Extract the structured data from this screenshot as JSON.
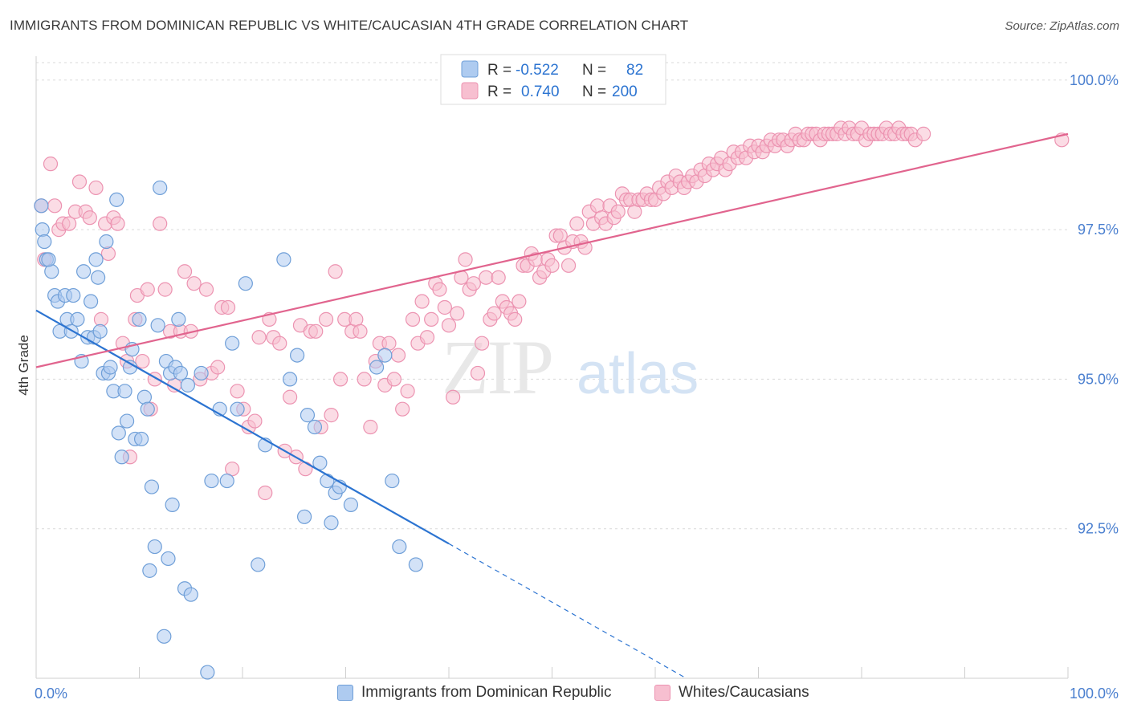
{
  "title": "IMMIGRANTS FROM DOMINICAN REPUBLIC VS WHITE/CAUCASIAN 4TH GRADE CORRELATION CHART",
  "source": "Source: ZipAtlas.com",
  "watermark": {
    "zip": "ZIP",
    "atlas": "atlas"
  },
  "colors": {
    "blue_fill": "#aecbf0",
    "blue_stroke": "#6f9fd8",
    "blue_line": "#2c74d1",
    "pink_fill": "#f7bfd0",
    "pink_stroke": "#ec93b1",
    "pink_line": "#e1648e",
    "axis_text": "#4a7fcf",
    "grid": "#d9d9d9"
  },
  "legend_box": {
    "rows": [
      {
        "r_label": "R =",
        "r_value": "-0.522",
        "n_label": "N =",
        "n_value": "82",
        "series": "blue"
      },
      {
        "r_label": "R =",
        "r_value": "0.740",
        "n_label": "N =",
        "n_value": "200",
        "series": "pink"
      }
    ]
  },
  "legend_bottom": [
    {
      "label": "Immigrants from Dominican Republic",
      "series": "blue"
    },
    {
      "label": "Whites/Caucasians",
      "series": "pink"
    }
  ],
  "chart_data": {
    "type": "scatter",
    "xlabel": "",
    "ylabel": "4th Grade",
    "xlim": [
      0,
      100
    ],
    "ylim": [
      90.0,
      100.4
    ],
    "x_tick_labels": [
      "0.0%",
      "100.0%"
    ],
    "y_ticks": [
      92.5,
      95.0,
      97.5,
      100.0
    ],
    "y_tick_labels": [
      "92.5%",
      "95.0%",
      "97.5%",
      "100.0%"
    ],
    "grid": true,
    "series": [
      {
        "name": "Immigrants from Dominican Republic",
        "color": "blue",
        "trend": {
          "x0": 0,
          "y0": 96.15,
          "x1": 40,
          "y1": 92.25,
          "dash_to_x": 63,
          "dash_to_y": 90.0
        },
        "points": [
          [
            0.5,
            97.9
          ],
          [
            0.6,
            97.5
          ],
          [
            0.8,
            97.3
          ],
          [
            1.0,
            97.0
          ],
          [
            1.5,
            96.8
          ],
          [
            1.8,
            96.4
          ],
          [
            2.1,
            96.3
          ],
          [
            2.3,
            95.8
          ],
          [
            2.8,
            96.4
          ],
          [
            3.0,
            96.0
          ],
          [
            3.4,
            95.8
          ],
          [
            3.6,
            96.4
          ],
          [
            4.0,
            96.0
          ],
          [
            4.4,
            95.3
          ],
          [
            4.6,
            96.8
          ],
          [
            5.0,
            95.7
          ],
          [
            5.3,
            96.3
          ],
          [
            5.6,
            95.7
          ],
          [
            5.8,
            97.0
          ],
          [
            6.0,
            96.7
          ],
          [
            6.2,
            95.8
          ],
          [
            6.5,
            95.1
          ],
          [
            6.8,
            97.3
          ],
          [
            7.0,
            95.1
          ],
          [
            7.2,
            95.2
          ],
          [
            7.5,
            94.8
          ],
          [
            7.8,
            98.0
          ],
          [
            8.0,
            94.1
          ],
          [
            8.3,
            93.7
          ],
          [
            8.6,
            94.8
          ],
          [
            8.8,
            94.3
          ],
          [
            9.1,
            95.2
          ],
          [
            9.3,
            95.5
          ],
          [
            9.6,
            94.0
          ],
          [
            10.0,
            96.0
          ],
          [
            10.2,
            94.0
          ],
          [
            10.5,
            94.7
          ],
          [
            10.8,
            94.5
          ],
          [
            11.0,
            91.8
          ],
          [
            11.2,
            93.2
          ],
          [
            11.5,
            92.2
          ],
          [
            11.8,
            95.9
          ],
          [
            12.0,
            98.2
          ],
          [
            12.4,
            90.7
          ],
          [
            12.6,
            95.3
          ],
          [
            12.8,
            92.0
          ],
          [
            13.0,
            95.1
          ],
          [
            13.2,
            92.9
          ],
          [
            13.5,
            95.2
          ],
          [
            13.8,
            96.0
          ],
          [
            14.0,
            95.1
          ],
          [
            14.4,
            91.5
          ],
          [
            14.7,
            94.9
          ],
          [
            15.0,
            91.4
          ],
          [
            16.0,
            95.1
          ],
          [
            16.6,
            90.1
          ],
          [
            17.0,
            93.3
          ],
          [
            17.8,
            94.5
          ],
          [
            18.5,
            93.3
          ],
          [
            19.0,
            95.6
          ],
          [
            19.5,
            94.5
          ],
          [
            20.3,
            96.6
          ],
          [
            21.5,
            91.9
          ],
          [
            22.2,
            93.9
          ],
          [
            24.0,
            97.0
          ],
          [
            24.6,
            95.0
          ],
          [
            25.3,
            95.4
          ],
          [
            26.0,
            92.7
          ],
          [
            26.3,
            94.4
          ],
          [
            27.0,
            94.2
          ],
          [
            27.5,
            93.6
          ],
          [
            28.2,
            93.3
          ],
          [
            28.6,
            92.6
          ],
          [
            29.0,
            93.1
          ],
          [
            29.4,
            93.2
          ],
          [
            30.5,
            92.9
          ],
          [
            33.0,
            95.2
          ],
          [
            33.8,
            95.4
          ],
          [
            34.5,
            93.3
          ],
          [
            35.2,
            92.2
          ],
          [
            36.8,
            91.9
          ],
          [
            1.2,
            97.0
          ]
        ]
      },
      {
        "name": "Whites/Caucasians",
        "color": "pink",
        "trend": {
          "x0": 0,
          "y0": 95.2,
          "x1": 100,
          "y1": 99.1
        },
        "points": [
          [
            0.5,
            97.9
          ],
          [
            0.8,
            97.0
          ],
          [
            1.4,
            98.6
          ],
          [
            1.8,
            97.9
          ],
          [
            2.2,
            97.5
          ],
          [
            2.6,
            97.6
          ],
          [
            3.2,
            97.6
          ],
          [
            3.8,
            97.8
          ],
          [
            4.2,
            98.3
          ],
          [
            4.8,
            97.8
          ],
          [
            5.2,
            97.7
          ],
          [
            5.8,
            98.2
          ],
          [
            6.3,
            96.0
          ],
          [
            6.7,
            97.6
          ],
          [
            7.0,
            97.1
          ],
          [
            7.5,
            97.7
          ],
          [
            7.9,
            97.6
          ],
          [
            8.4,
            95.6
          ],
          [
            8.8,
            95.3
          ],
          [
            9.1,
            93.7
          ],
          [
            9.6,
            96.0
          ],
          [
            9.8,
            96.4
          ],
          [
            10.3,
            95.3
          ],
          [
            10.8,
            96.5
          ],
          [
            11.1,
            94.5
          ],
          [
            11.5,
            95.0
          ],
          [
            12.0,
            97.6
          ],
          [
            12.5,
            96.5
          ],
          [
            13.0,
            95.8
          ],
          [
            13.4,
            94.9
          ],
          [
            14.0,
            95.8
          ],
          [
            14.4,
            96.8
          ],
          [
            15.0,
            95.8
          ],
          [
            15.3,
            96.6
          ],
          [
            15.9,
            95.0
          ],
          [
            16.5,
            96.5
          ],
          [
            17.0,
            95.1
          ],
          [
            17.6,
            95.2
          ],
          [
            18.0,
            96.2
          ],
          [
            18.6,
            96.2
          ],
          [
            19.0,
            93.5
          ],
          [
            19.5,
            94.8
          ],
          [
            20.1,
            94.5
          ],
          [
            20.6,
            94.2
          ],
          [
            21.2,
            94.3
          ],
          [
            21.6,
            95.7
          ],
          [
            22.2,
            93.1
          ],
          [
            22.6,
            96.0
          ],
          [
            23.0,
            95.7
          ],
          [
            23.6,
            95.6
          ],
          [
            24.1,
            93.8
          ],
          [
            24.6,
            94.7
          ],
          [
            25.2,
            93.7
          ],
          [
            25.6,
            95.9
          ],
          [
            26.1,
            93.5
          ],
          [
            26.6,
            95.8
          ],
          [
            27.1,
            95.8
          ],
          [
            27.6,
            94.2
          ],
          [
            28.1,
            96.0
          ],
          [
            28.6,
            94.4
          ],
          [
            29.0,
            96.8
          ],
          [
            29.5,
            95.0
          ],
          [
            29.9,
            96.0
          ],
          [
            30.6,
            95.8
          ],
          [
            31.0,
            96.0
          ],
          [
            31.4,
            95.8
          ],
          [
            31.8,
            95.0
          ],
          [
            32.4,
            94.2
          ],
          [
            32.9,
            95.3
          ],
          [
            33.3,
            95.6
          ],
          [
            33.8,
            94.9
          ],
          [
            34.2,
            95.6
          ],
          [
            34.7,
            95.0
          ],
          [
            35.1,
            95.4
          ],
          [
            35.5,
            94.5
          ],
          [
            36.0,
            94.8
          ],
          [
            36.5,
            96.0
          ],
          [
            37.0,
            95.6
          ],
          [
            37.4,
            96.3
          ],
          [
            37.9,
            95.7
          ],
          [
            38.3,
            96.0
          ],
          [
            38.7,
            96.6
          ],
          [
            39.1,
            96.5
          ],
          [
            39.6,
            96.2
          ],
          [
            40.0,
            95.9
          ],
          [
            40.4,
            94.7
          ],
          [
            40.8,
            96.1
          ],
          [
            41.2,
            96.7
          ],
          [
            41.6,
            97.0
          ],
          [
            42.0,
            96.5
          ],
          [
            42.4,
            96.6
          ],
          [
            42.8,
            95.1
          ],
          [
            43.2,
            95.6
          ],
          [
            43.6,
            96.7
          ],
          [
            44.0,
            96.0
          ],
          [
            44.4,
            96.1
          ],
          [
            44.8,
            96.7
          ],
          [
            45.2,
            96.3
          ],
          [
            45.6,
            96.2
          ],
          [
            46.0,
            96.1
          ],
          [
            46.4,
            96.0
          ],
          [
            46.8,
            96.3
          ],
          [
            47.2,
            96.9
          ],
          [
            47.6,
            96.9
          ],
          [
            48.0,
            97.1
          ],
          [
            48.4,
            97.0
          ],
          [
            48.8,
            96.7
          ],
          [
            49.2,
            96.8
          ],
          [
            49.6,
            97.0
          ],
          [
            50.0,
            96.9
          ],
          [
            50.4,
            97.4
          ],
          [
            50.8,
            97.4
          ],
          [
            51.2,
            97.2
          ],
          [
            51.6,
            96.9
          ],
          [
            52.0,
            97.3
          ],
          [
            52.4,
            97.6
          ],
          [
            52.8,
            97.3
          ],
          [
            53.2,
            97.2
          ],
          [
            53.6,
            97.8
          ],
          [
            54.0,
            97.6
          ],
          [
            54.4,
            97.9
          ],
          [
            54.8,
            97.7
          ],
          [
            55.2,
            97.6
          ],
          [
            55.6,
            97.9
          ],
          [
            56.0,
            97.7
          ],
          [
            56.4,
            97.8
          ],
          [
            56.8,
            98.1
          ],
          [
            57.2,
            98.0
          ],
          [
            57.6,
            98.0
          ],
          [
            58.0,
            97.8
          ],
          [
            58.4,
            98.0
          ],
          [
            58.8,
            98.0
          ],
          [
            59.2,
            98.1
          ],
          [
            59.6,
            98.0
          ],
          [
            60.0,
            98.0
          ],
          [
            60.4,
            98.2
          ],
          [
            60.8,
            98.1
          ],
          [
            61.2,
            98.3
          ],
          [
            61.6,
            98.2
          ],
          [
            62.0,
            98.4
          ],
          [
            62.4,
            98.3
          ],
          [
            62.8,
            98.2
          ],
          [
            63.2,
            98.3
          ],
          [
            63.6,
            98.4
          ],
          [
            64.0,
            98.3
          ],
          [
            64.4,
            98.5
          ],
          [
            64.8,
            98.4
          ],
          [
            65.2,
            98.6
          ],
          [
            65.6,
            98.5
          ],
          [
            66.0,
            98.6
          ],
          [
            66.4,
            98.7
          ],
          [
            66.8,
            98.5
          ],
          [
            67.2,
            98.6
          ],
          [
            67.6,
            98.8
          ],
          [
            68.0,
            98.7
          ],
          [
            68.4,
            98.8
          ],
          [
            68.8,
            98.7
          ],
          [
            69.2,
            98.9
          ],
          [
            69.6,
            98.8
          ],
          [
            70.0,
            98.9
          ],
          [
            70.4,
            98.8
          ],
          [
            70.8,
            98.9
          ],
          [
            71.2,
            99.0
          ],
          [
            71.6,
            98.9
          ],
          [
            72.0,
            99.0
          ],
          [
            72.4,
            99.0
          ],
          [
            72.8,
            98.9
          ],
          [
            73.2,
            99.0
          ],
          [
            73.6,
            99.1
          ],
          [
            74.0,
            99.0
          ],
          [
            74.4,
            99.0
          ],
          [
            74.8,
            99.1
          ],
          [
            75.2,
            99.1
          ],
          [
            75.6,
            99.1
          ],
          [
            76.0,
            99.0
          ],
          [
            76.4,
            99.1
          ],
          [
            76.8,
            99.1
          ],
          [
            77.2,
            99.1
          ],
          [
            77.6,
            99.1
          ],
          [
            78.0,
            99.2
          ],
          [
            78.4,
            99.1
          ],
          [
            78.8,
            99.2
          ],
          [
            79.2,
            99.1
          ],
          [
            79.6,
            99.1
          ],
          [
            80.0,
            99.2
          ],
          [
            80.4,
            99.0
          ],
          [
            80.8,
            99.1
          ],
          [
            81.2,
            99.1
          ],
          [
            81.6,
            99.1
          ],
          [
            82.0,
            99.1
          ],
          [
            82.4,
            99.2
          ],
          [
            82.8,
            99.1
          ],
          [
            83.2,
            99.1
          ],
          [
            83.6,
            99.2
          ],
          [
            84.0,
            99.1
          ],
          [
            84.4,
            99.1
          ],
          [
            84.8,
            99.1
          ],
          [
            85.2,
            99.0
          ],
          [
            86.0,
            99.1
          ],
          [
            99.4,
            99.0
          ]
        ]
      }
    ]
  }
}
